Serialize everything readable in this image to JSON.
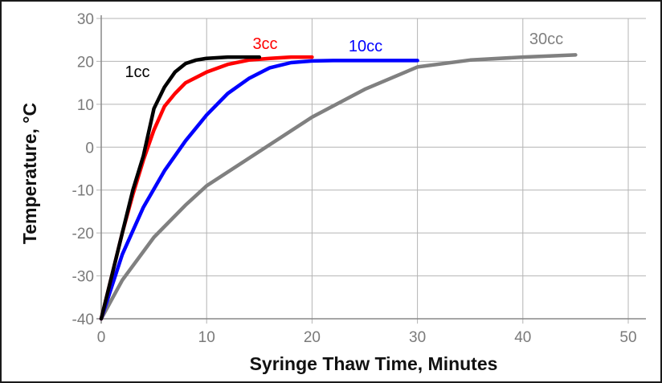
{
  "chart_data": {
    "type": "line",
    "title": "",
    "xlabel": "Syringe Thaw Time, Minutes",
    "ylabel": "Temperature, °C",
    "xlim": [
      0,
      50
    ],
    "ylim": [
      -40,
      30
    ],
    "xticks": [
      0,
      10,
      20,
      30,
      40,
      50
    ],
    "yticks": [
      -40,
      -30,
      -20,
      -10,
      0,
      10,
      20,
      30
    ],
    "grid": true,
    "legend": "inline labels near line ends",
    "series": [
      {
        "name": "1cc",
        "color": "#000000",
        "x": [
          0,
          1,
          2,
          3,
          4,
          5,
          6,
          7,
          8,
          9,
          10,
          12,
          15
        ],
        "y": [
          -40,
          -30,
          -20,
          -10,
          -2,
          9,
          14,
          17.5,
          19.5,
          20.3,
          20.7,
          21,
          21
        ]
      },
      {
        "name": "3cc",
        "color": "#ff0000",
        "x": [
          0,
          1,
          2,
          3,
          4,
          5,
          6,
          7,
          8,
          10,
          12,
          14,
          16,
          18,
          20
        ],
        "y": [
          -40,
          -30,
          -20,
          -11,
          -3,
          4,
          9.5,
          12.5,
          15,
          17.5,
          19.3,
          20.3,
          20.7,
          21,
          21
        ]
      },
      {
        "name": "10cc",
        "color": "#0000ff",
        "x": [
          0,
          2,
          4,
          6,
          8,
          10,
          12,
          14,
          16,
          18,
          20,
          22,
          25,
          30
        ],
        "y": [
          -40,
          -25,
          -14,
          -5.5,
          1.5,
          7.5,
          12.5,
          16,
          18.5,
          19.7,
          20.1,
          20.2,
          20.2,
          20.2
        ]
      },
      {
        "name": "30cc",
        "color": "#808080",
        "x": [
          0,
          2,
          5,
          8,
          10,
          15,
          20,
          25,
          30,
          35,
          40,
          45
        ],
        "y": [
          -40,
          -31,
          -21,
          -13.5,
          -9,
          -1,
          7,
          13.5,
          18.7,
          20.3,
          21,
          21.5
        ]
      }
    ]
  }
}
